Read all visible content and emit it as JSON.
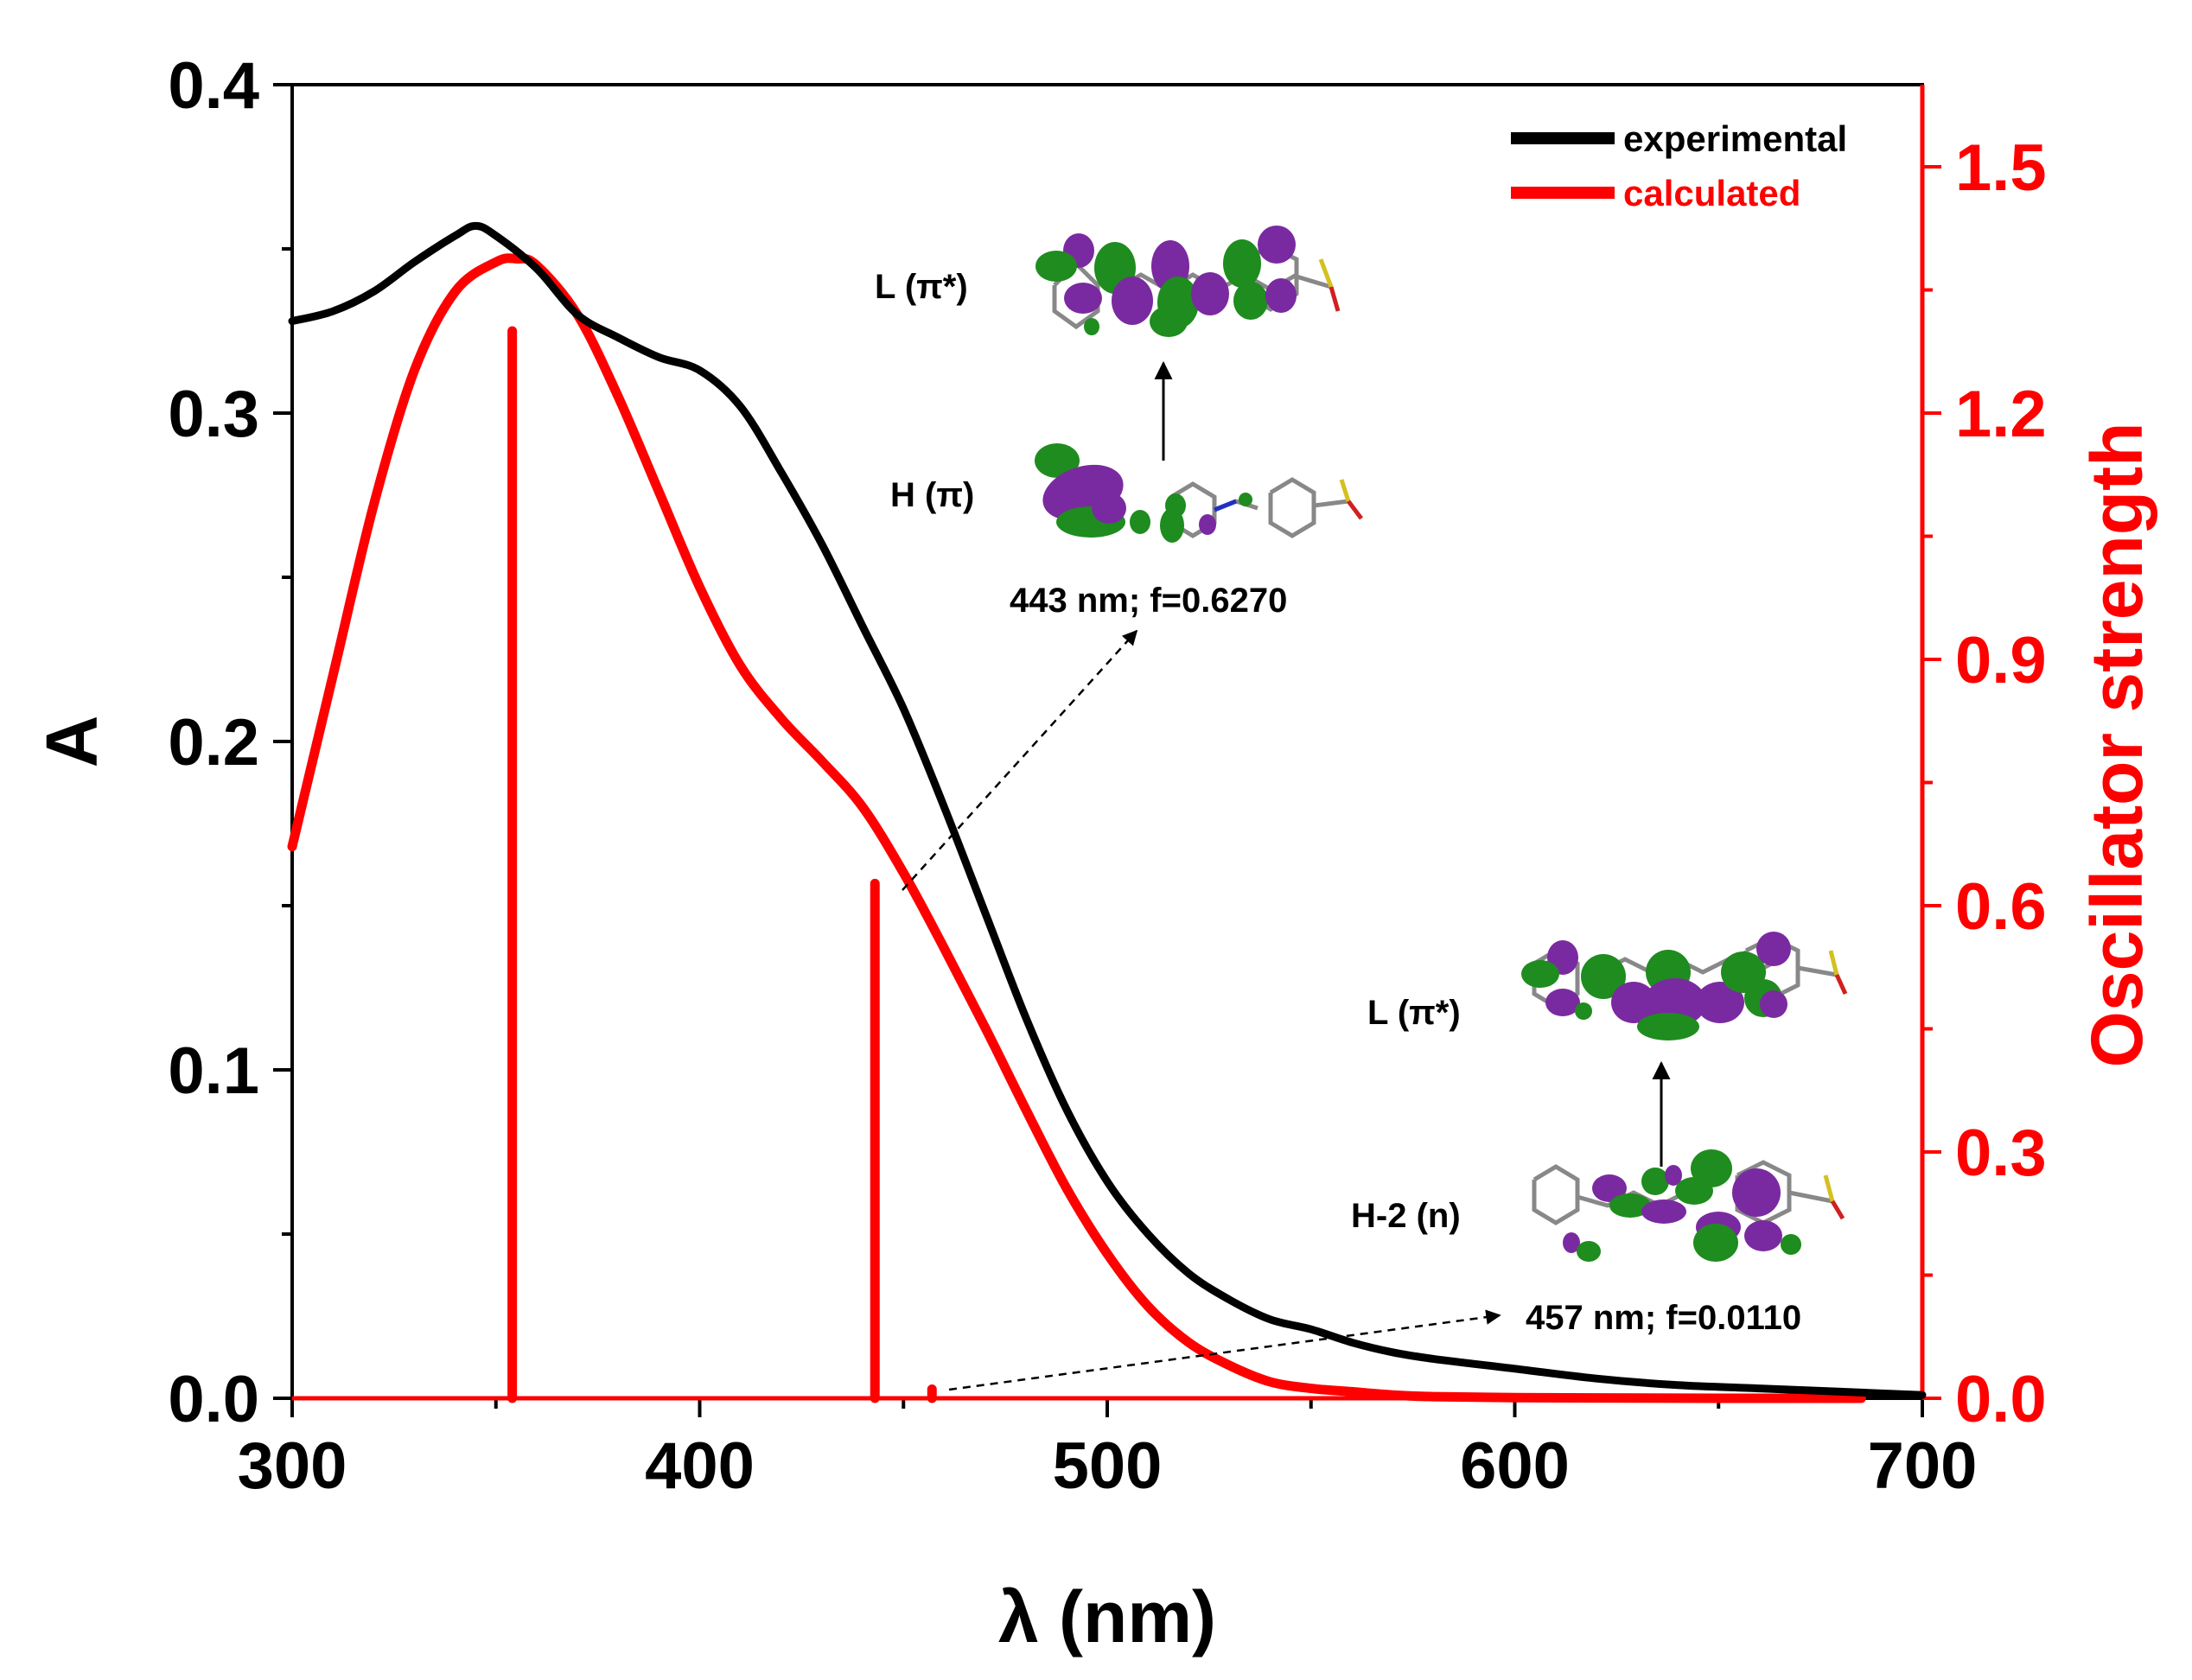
{
  "chart_data": {
    "type": "line",
    "x_axis": {
      "label": "λ (nm)",
      "range": [
        300,
        700
      ],
      "ticks": [
        300,
        400,
        500,
        600,
        700
      ]
    },
    "y_left": {
      "label": "A",
      "range": [
        0.0,
        0.4
      ],
      "ticks": [
        "0.0",
        "0.1",
        "0.2",
        "0.3",
        "0.4"
      ],
      "values": [
        0.0,
        0.1,
        0.2,
        0.3,
        0.4
      ]
    },
    "y_right": {
      "label": "Oscillator strength",
      "range": [
        0.0,
        1.6
      ],
      "ticks": [
        "0.0",
        "0.3",
        "0.6",
        "0.9",
        "1.2",
        "1.5"
      ],
      "values": [
        0.0,
        0.3,
        0.6,
        0.9,
        1.2,
        1.5
      ],
      "color": "#ff0000"
    },
    "legend": {
      "position": "top-right",
      "items": [
        {
          "name": "experimental",
          "color": "#000000"
        },
        {
          "name": "calculated",
          "color": "#ff0000"
        }
      ]
    },
    "series": [
      {
        "name": "experimental",
        "axis": "left",
        "color": "#000000",
        "x": [
          300,
          310,
          320,
          330,
          340,
          345,
          350,
          360,
          370,
          380,
          390,
          400,
          410,
          420,
          430,
          440,
          450,
          460,
          470,
          480,
          490,
          500,
          510,
          520,
          530,
          540,
          550,
          560,
          570,
          580,
          600,
          620,
          640,
          660,
          680,
          700
        ],
        "y": [
          0.328,
          0.331,
          0.337,
          0.346,
          0.354,
          0.357,
          0.354,
          0.344,
          0.33,
          0.323,
          0.317,
          0.313,
          0.302,
          0.282,
          0.26,
          0.235,
          0.21,
          0.18,
          0.148,
          0.116,
          0.088,
          0.066,
          0.05,
          0.038,
          0.03,
          0.024,
          0.021,
          0.017,
          0.014,
          0.012,
          0.009,
          0.006,
          0.004,
          0.003,
          0.002,
          0.001
        ]
      },
      {
        "name": "calculated",
        "axis": "left",
        "color": "#ff0000",
        "x": [
          300,
          310,
          320,
          330,
          340,
          350,
          355,
          360,
          370,
          380,
          390,
          400,
          410,
          420,
          430,
          440,
          450,
          460,
          470,
          480,
          490,
          500,
          510,
          520,
          530,
          540,
          550,
          560,
          570,
          580,
          600,
          620,
          650,
          685
        ],
        "y": [
          0.168,
          0.22,
          0.272,
          0.313,
          0.337,
          0.346,
          0.347,
          0.345,
          0.33,
          0.305,
          0.276,
          0.247,
          0.223,
          0.207,
          0.194,
          0.18,
          0.16,
          0.137,
          0.113,
          0.088,
          0.064,
          0.044,
          0.028,
          0.017,
          0.01,
          0.005,
          0.003,
          0.002,
          0.001,
          0.0005,
          0.0002,
          0.0001,
          0.0,
          0.0
        ]
      },
      {
        "name": "oscillator strengths",
        "axis": "right",
        "color": "#ff0000",
        "type": "stick",
        "x": [
          354,
          443,
          457
        ],
        "y": [
          1.3,
          0.627,
          0.011
        ]
      }
    ]
  },
  "mo_labels": {
    "upper_lumo": "L (π*)",
    "upper_homo": "H (π)",
    "lower_lumo": "L (π*)",
    "lower_homo": "H-2 (n)"
  },
  "annotations": {
    "transition_443": "443 nm; f=0.6270",
    "transition_457": "457 nm; f=0.0110"
  },
  "colors": {
    "orbital_green": "#1e8c1e",
    "orbital_purple": "#7a2aa0",
    "axis_right": "#ff0000"
  }
}
